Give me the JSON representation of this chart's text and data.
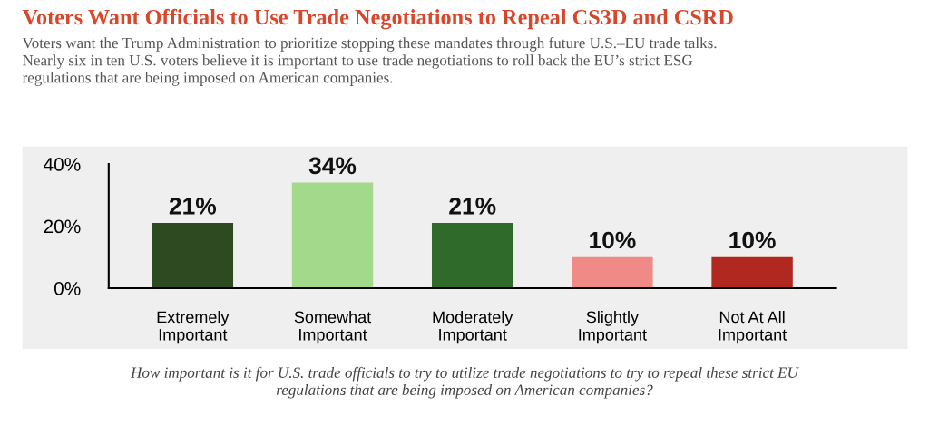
{
  "chart_data": {
    "type": "bar",
    "title": "Voters Want Officials to Use Trade Negotiations to Repeal CS3D and CSRD",
    "subtitle": "Voters want the Trump Administration to prioritize stopping these mandates through future U.S.–EU trade talks.\nNearly six in ten U.S. voters believe it is important to use trade negotiations to roll back the EU’s strict ESG\nregulations that are being imposed on American companies.",
    "annotations": [
      "How important is it for U.S. trade officials to try to utilize trade negotiations to try to repeal these strict EU\nregulations that are being imposed on American companies?"
    ],
    "categories": [
      "Extremely\nImportant",
      "Somewhat\nImportant",
      "Moderately\nImportant",
      "Slightly\nImportant",
      "Not At All\nImportant"
    ],
    "values": [
      21,
      34,
      21,
      10,
      10
    ],
    "value_labels": [
      "21%",
      "34%",
      "21%",
      "10%",
      "10%"
    ],
    "colors": [
      "#2e4a20",
      "#a3d98b",
      "#306a2b",
      "#ef8a86",
      "#b0281f"
    ],
    "ylim": [
      0,
      40
    ],
    "yticks": [
      {
        "value": 0,
        "label": "0%"
      },
      {
        "value": 20,
        "label": "20%"
      },
      {
        "value": 40,
        "label": "40%"
      }
    ],
    "grid": false,
    "legend": false
  }
}
